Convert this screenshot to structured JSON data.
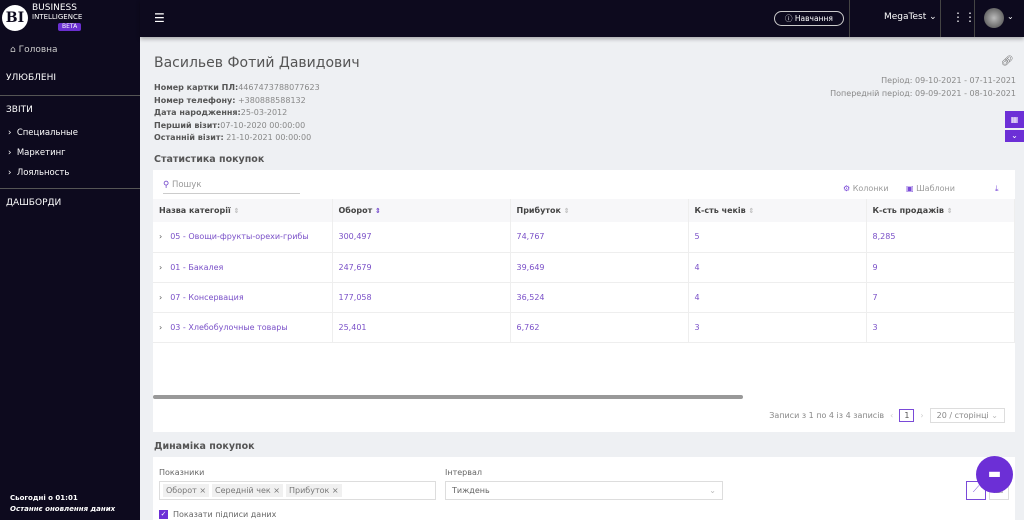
{
  "brand": {
    "initials": "BI",
    "line1": "BUSINESS",
    "line2": "INTELLIGENCE",
    "badge": "BETA"
  },
  "sidebar": {
    "home": "Головна",
    "favorites": "УЛЮБЛЕНІ",
    "reports": "ЗВІТИ",
    "items": [
      {
        "label": "Специальные"
      },
      {
        "label": "Маркетинг"
      },
      {
        "label": "Лояльность"
      }
    ],
    "dashboards": "ДАШБОРДИ",
    "footer_time": "Сьогодні о 01:01",
    "footer_caption": "Останнє оновлення даних"
  },
  "topbar": {
    "learn": "Навчання",
    "account": "MegaTest"
  },
  "customer": {
    "name": "Васильев Фотий Давидович",
    "fields": [
      {
        "label": "Номер картки ПЛ:",
        "value": "4467473788077623"
      },
      {
        "label": "Номер телефону:",
        "value": "+380888588132"
      },
      {
        "label": "Дата народження:",
        "value": "25-03-2012"
      },
      {
        "label": "Перший візит:",
        "value": "07-10-2020 00:00:00"
      },
      {
        "label": "Останній візит:",
        "value": "21-10-2021 00:00:00"
      }
    ]
  },
  "period": {
    "current": "Період: 09-10-2021 - 07-11-2021",
    "previous": "Попередній період: 09-09-2021 - 08-10-2021"
  },
  "stats": {
    "title": "Статистика покупок",
    "search_placeholder": "Пошук",
    "columns_btn": "Колонки",
    "templates_btn": "Шаблони",
    "headers": [
      "Назва категорії",
      "Оборот",
      "Прибуток",
      "К-сть чеків",
      "К-сть продажів"
    ],
    "rows": [
      [
        "05 - Овощи-фрукты-орехи-грибы",
        "300,497",
        "74,767",
        "5",
        "8,285"
      ],
      [
        "01 - Бакалея",
        "247,679",
        "39,649",
        "4",
        "9"
      ],
      [
        "07 - Консервация",
        "177,058",
        "36,524",
        "4",
        "7"
      ],
      [
        "03 - Хлебобулочные товары",
        "25,401",
        "6,762",
        "3",
        "3"
      ]
    ],
    "records": "Записи з 1 по 4 із 4 записів",
    "page": "1",
    "page_size": "20 / сторінці"
  },
  "dynamics": {
    "title": "Динаміка покупок",
    "metrics_label": "Показники",
    "metrics": [
      "Оборот",
      "Середній чек",
      "Прибуток"
    ],
    "interval_label": "Інтервал",
    "interval": "Тиждень",
    "show_labels": "Показати підписи даних",
    "show_labels_checked": true
  },
  "accent": "#6c2fd6"
}
